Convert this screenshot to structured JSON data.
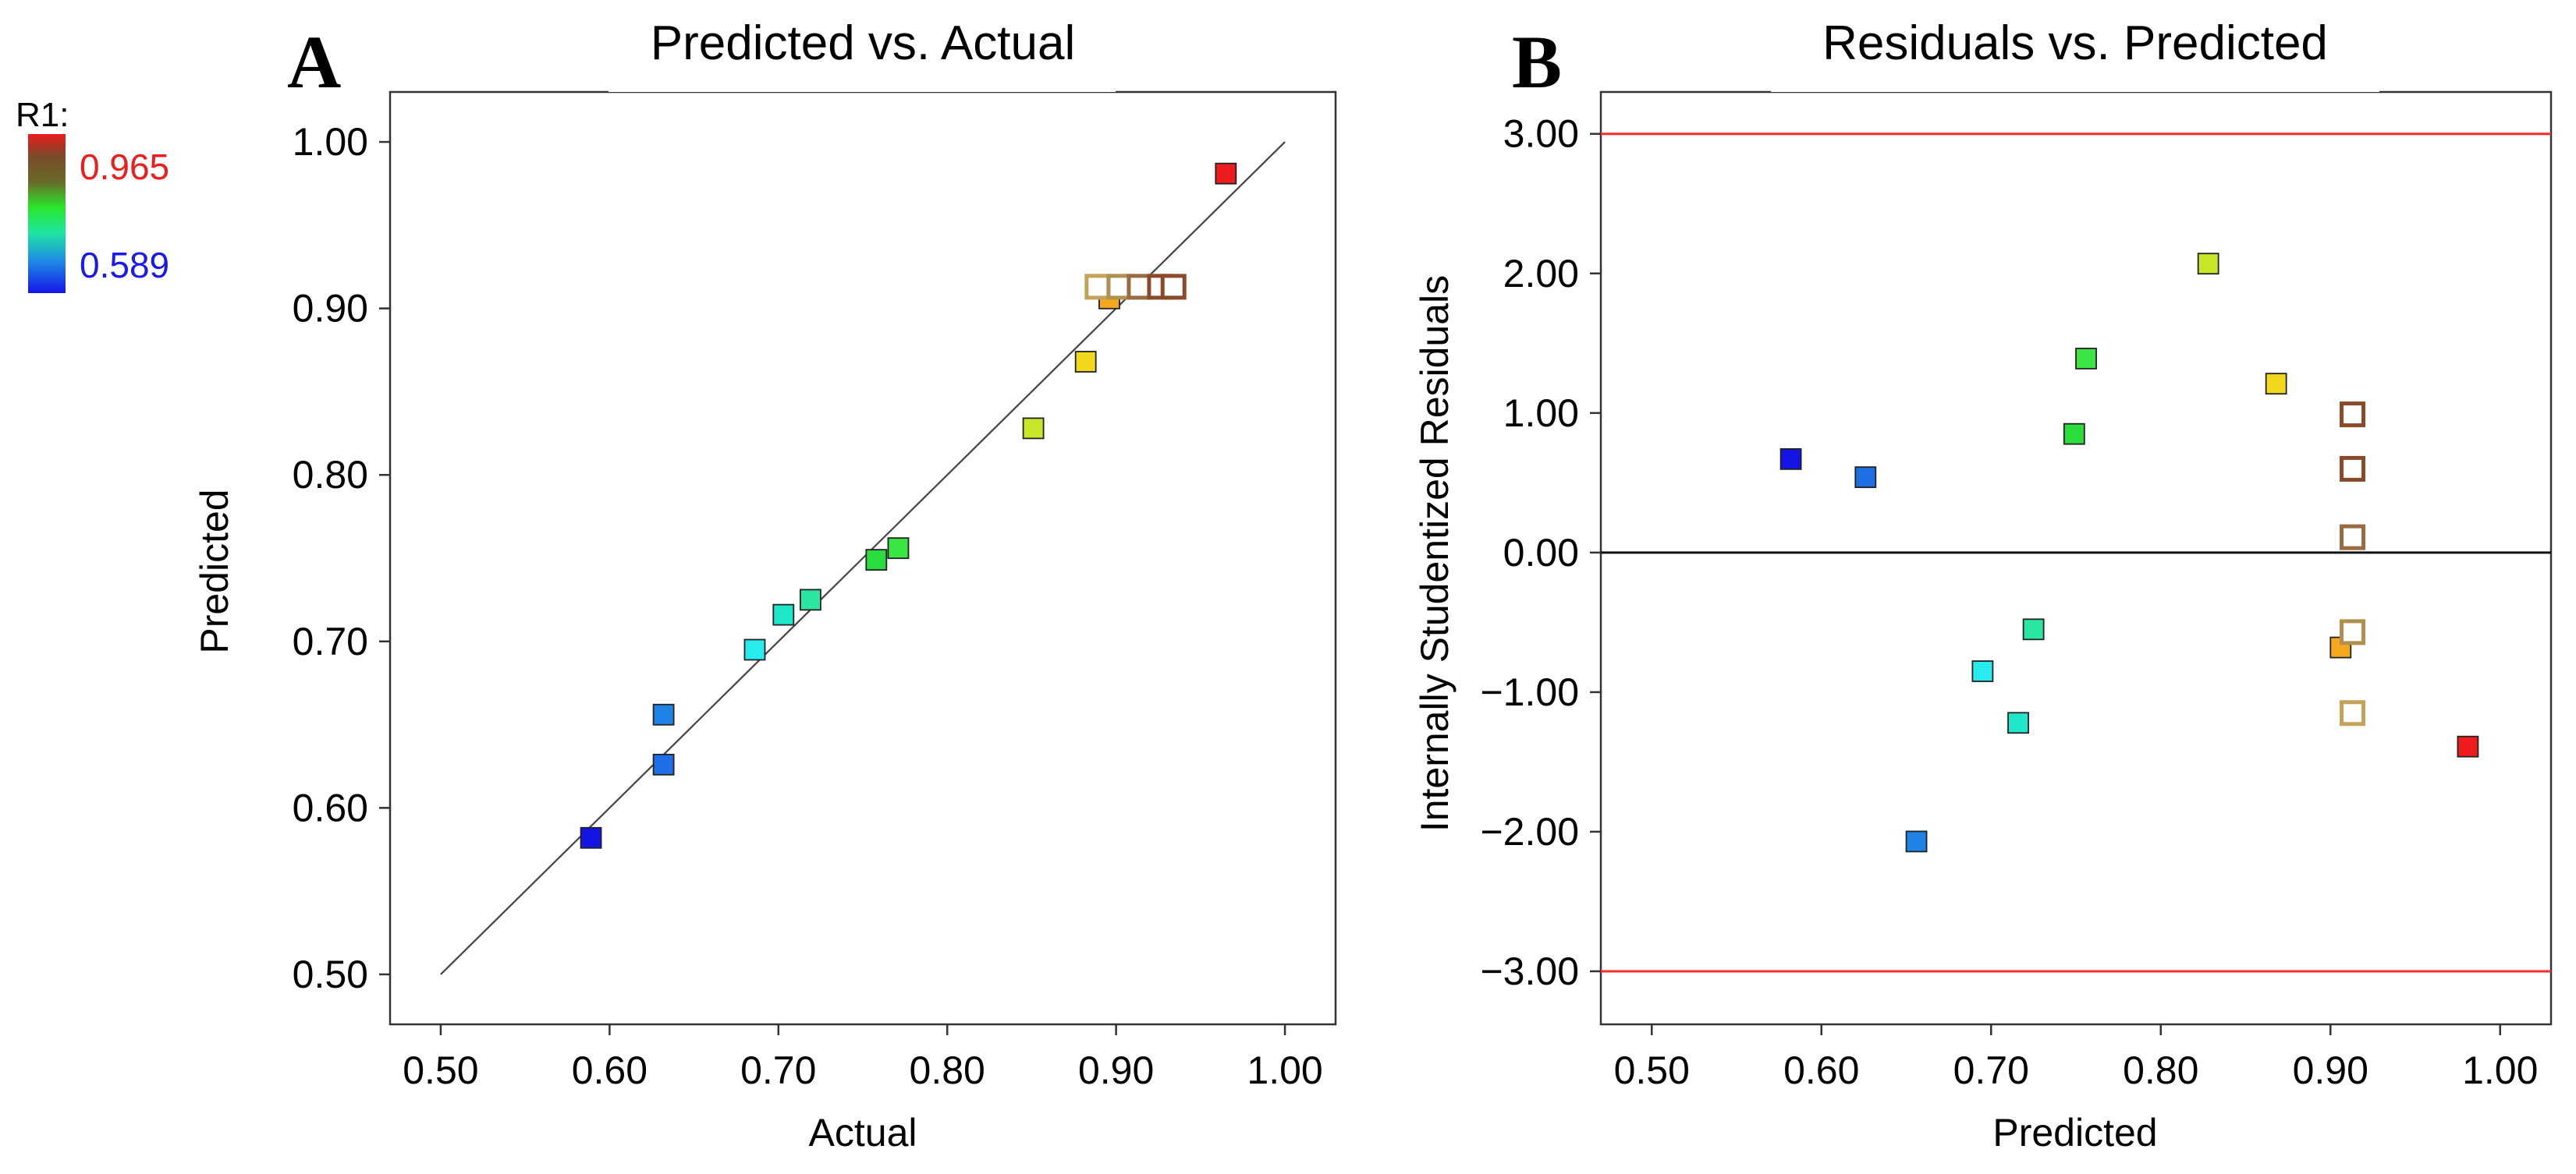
{
  "colors": {
    "ref_line_red": "#ff2a2a",
    "open_marker_edge": "#8a4a2a",
    "open_marker_edge_light": "#c4a25a"
  },
  "legend": {
    "title": "R1:",
    "max_label": "0.965",
    "min_label": "0.589",
    "max_color": "#ee1c1c",
    "min_color": "#1a1aee"
  },
  "chart_data": [
    {
      "panel": "A",
      "type": "scatter",
      "title": "Predicted vs. Actual",
      "xlabel": "Actual",
      "ylabel": "Predicted",
      "xlim": [
        0.47,
        1.03
      ],
      "ylim": [
        0.47,
        1.03
      ],
      "xticks": [
        0.5,
        0.6,
        0.7,
        0.8,
        0.9,
        1.0
      ],
      "yticks": [
        0.5,
        0.6,
        0.7,
        0.8,
        0.9,
        1.0
      ],
      "xtick_labels": [
        "0.50",
        "0.60",
        "0.70",
        "0.80",
        "0.90",
        "1.00"
      ],
      "ytick_labels": [
        "0.50",
        "0.60",
        "0.70",
        "0.80",
        "0.90",
        "1.00"
      ],
      "reference_line": {
        "from": [
          0.5,
          0.5
        ],
        "to": [
          1.0,
          1.0
        ]
      },
      "points": [
        {
          "x": 0.589,
          "y": 0.582,
          "color": "#1414e6",
          "filled": true
        },
        {
          "x": 0.632,
          "y": 0.626,
          "color": "#1e6ee6",
          "filled": true
        },
        {
          "x": 0.632,
          "y": 0.656,
          "color": "#1e82e6",
          "filled": true
        },
        {
          "x": 0.686,
          "y": 0.695,
          "color": "#28ebf0",
          "filled": true
        },
        {
          "x": 0.703,
          "y": 0.716,
          "color": "#1ee6c8",
          "filled": true
        },
        {
          "x": 0.719,
          "y": 0.725,
          "color": "#2ae6a0",
          "filled": true
        },
        {
          "x": 0.758,
          "y": 0.749,
          "color": "#2add3c",
          "filled": true
        },
        {
          "x": 0.771,
          "y": 0.756,
          "color": "#3ae644",
          "filled": true
        },
        {
          "x": 0.851,
          "y": 0.828,
          "color": "#c8e628",
          "filled": true
        },
        {
          "x": 0.882,
          "y": 0.868,
          "color": "#f2d81c",
          "filled": true
        },
        {
          "x": 0.896,
          "y": 0.906,
          "color": "#f5a81e",
          "filled": true
        },
        {
          "x": 0.889,
          "y": 0.913,
          "color": "#c4a25a",
          "filled": false
        },
        {
          "x": 0.902,
          "y": 0.913,
          "color": "#b09050",
          "filled": false
        },
        {
          "x": 0.914,
          "y": 0.913,
          "color": "#9a6a40",
          "filled": false
        },
        {
          "x": 0.926,
          "y": 0.913,
          "color": "#8a4a2a",
          "filled": false
        },
        {
          "x": 0.934,
          "y": 0.913,
          "color": "#8a4a2a",
          "filled": false
        },
        {
          "x": 0.965,
          "y": 0.981,
          "color": "#ee1c1c",
          "filled": true
        }
      ]
    },
    {
      "panel": "B",
      "type": "scatter",
      "title": "Residuals vs. Predicted",
      "xlabel": "Predicted",
      "ylabel": "Internally Studentized Residuals",
      "xlim": [
        0.47,
        1.03
      ],
      "ylim": [
        -3.38,
        3.3
      ],
      "xticks": [
        0.5,
        0.6,
        0.7,
        0.8,
        0.9,
        1.0
      ],
      "yticks": [
        -3,
        -2,
        -1,
        0,
        1,
        2,
        3
      ],
      "xtick_labels": [
        "0.50",
        "0.60",
        "0.70",
        "0.80",
        "0.90",
        "1.00"
      ],
      "ytick_labels": [
        "−3.00",
        "−2.00",
        "−1.00",
        "0.00",
        "1.00",
        "2.00",
        "3.00"
      ],
      "limit_lines": [
        3.0,
        -3.0
      ],
      "zero_line": 0.0,
      "points": [
        {
          "x": 0.582,
          "y": 0.67,
          "color": "#1414e6",
          "filled": true
        },
        {
          "x": 0.626,
          "y": 0.54,
          "color": "#1e6ee6",
          "filled": true
        },
        {
          "x": 0.656,
          "y": -2.07,
          "color": "#1e82e6",
          "filled": true
        },
        {
          "x": 0.695,
          "y": -0.85,
          "color": "#28ebf0",
          "filled": true
        },
        {
          "x": 0.716,
          "y": -1.22,
          "color": "#1ee6c8",
          "filled": true
        },
        {
          "x": 0.725,
          "y": -0.55,
          "color": "#2ae6a0",
          "filled": true
        },
        {
          "x": 0.749,
          "y": 0.85,
          "color": "#2add3c",
          "filled": true
        },
        {
          "x": 0.756,
          "y": 1.39,
          "color": "#3ae644",
          "filled": true
        },
        {
          "x": 0.828,
          "y": 2.07,
          "color": "#c8e628",
          "filled": true
        },
        {
          "x": 0.868,
          "y": 1.21,
          "color": "#f2d81c",
          "filled": true
        },
        {
          "x": 0.906,
          "y": -0.68,
          "color": "#f5a81e",
          "filled": true
        },
        {
          "x": 0.913,
          "y": 0.99,
          "color": "#8a4a2a",
          "filled": false
        },
        {
          "x": 0.913,
          "y": 0.6,
          "color": "#8a4a2a",
          "filled": false
        },
        {
          "x": 0.913,
          "y": 0.11,
          "color": "#9a6a40",
          "filled": false
        },
        {
          "x": 0.913,
          "y": -0.57,
          "color": "#b09050",
          "filled": false
        },
        {
          "x": 0.913,
          "y": -1.15,
          "color": "#c4a25a",
          "filled": false
        },
        {
          "x": 0.981,
          "y": -1.39,
          "color": "#ee1c1c",
          "filled": true
        }
      ]
    }
  ]
}
